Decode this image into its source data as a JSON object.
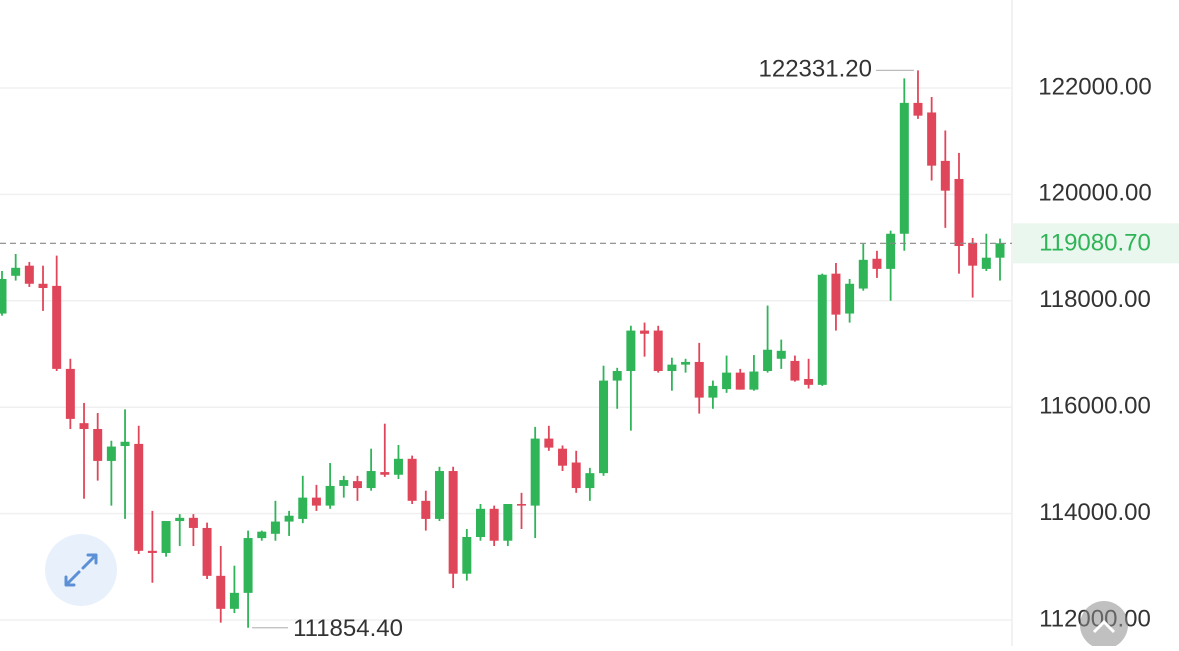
{
  "chart_data": {
    "type": "candlestick",
    "up_color": "#2fb457",
    "down_color": "#e0465a",
    "ylim": [
      111511,
      123654
    ],
    "yticks": [
      {
        "value": 112000,
        "label": "112000.00"
      },
      {
        "value": 114000,
        "label": "114000.00"
      },
      {
        "value": 116000,
        "label": "116000.00"
      },
      {
        "value": 118000,
        "label": "118000.00"
      },
      {
        "value": 120000,
        "label": "120000.00"
      },
      {
        "value": 122000,
        "label": "122000.00"
      }
    ],
    "grid": true,
    "open": [
      117760,
      118470,
      118660,
      118320,
      118280,
      116720,
      115700,
      115590,
      114990,
      115270,
      115310,
      113300,
      113260,
      113860,
      113920,
      113730,
      112830,
      112210,
      112510,
      113540,
      113620,
      113850,
      113900,
      114300,
      114150,
      114520,
      114610,
      114480,
      114780,
      114730,
      115030,
      114240,
      113900,
      114800,
      112870,
      113560,
      114090,
      113490,
      114180,
      114150,
      115410,
      115220,
      114960,
      114480,
      114760,
      116500,
      116680,
      117440,
      117440,
      116680,
      116800,
      116850,
      116180,
      116340,
      116650,
      116330,
      116680,
      116910,
      116870,
      116530,
      116420,
      118510,
      117760,
      118230,
      118790,
      118600,
      119260,
      121720,
      121540,
      120630,
      120290,
      119090,
      118600,
      118810
    ],
    "high": [
      118560,
      118880,
      118730,
      118660,
      118850,
      116910,
      116080,
      115890,
      115370,
      115960,
      115650,
      114050,
      113860,
      113990,
      113990,
      113830,
      113390,
      113020,
      113680,
      113680,
      114240,
      114050,
      114710,
      114540,
      114950,
      114710,
      114710,
      115220,
      115690,
      115290,
      115090,
      114430,
      114880,
      114880,
      113710,
      114180,
      114150,
      114180,
      114390,
      115630,
      115650,
      115280,
      115180,
      114860,
      116780,
      116740,
      117530,
      117590,
      117530,
      116930,
      116910,
      117210,
      116500,
      116970,
      116720,
      116980,
      117910,
      117270,
      116970,
      116910,
      118510,
      118710,
      118410,
      119070,
      118940,
      119320,
      122180,
      122331.2,
      121830,
      121200,
      120780,
      119180,
      119260,
      119170
    ],
    "low": [
      117720,
      118380,
      118260,
      117810,
      116680,
      115590,
      114280,
      114620,
      114150,
      113900,
      113240,
      112700,
      113190,
      113390,
      113390,
      112770,
      111950,
      112130,
      111854.4,
      113490,
      113490,
      113580,
      113820,
      114050,
      114090,
      114300,
      114240,
      114430,
      114690,
      114650,
      114180,
      113680,
      113860,
      112600,
      112740,
      113490,
      113390,
      113390,
      113710,
      113540,
      115180,
      114800,
      114390,
      114240,
      114710,
      115970,
      115560,
      116950,
      116650,
      116310,
      116650,
      115880,
      115970,
      116270,
      116330,
      116310,
      116650,
      116720,
      116480,
      116350,
      116400,
      117440,
      117590,
      118190,
      118430,
      118000,
      118940,
      121420,
      120260,
      119370,
      118510,
      118060,
      118560,
      118380
    ],
    "close": [
      118410,
      118620,
      118320,
      118240,
      116720,
      115780,
      115590,
      114990,
      115260,
      115350,
      113300,
      113260,
      113860,
      113920,
      113730,
      112830,
      112210,
      112510,
      113540,
      113660,
      113850,
      113960,
      114300,
      114150,
      114520,
      114630,
      114480,
      114800,
      114730,
      115030,
      114240,
      113900,
      114800,
      112870,
      113560,
      114090,
      113490,
      114180,
      114150,
      115410,
      115240,
      114900,
      114480,
      114760,
      116500,
      116680,
      117440,
      117380,
      116680,
      116800,
      116850,
      116180,
      116400,
      116650,
      116330,
      116670,
      117080,
      117060,
      116500,
      116420,
      118490,
      117740,
      118320,
      118770,
      118600,
      119260,
      121720,
      121480,
      120540,
      120070,
      119030,
      118660,
      118810,
      119080.7
    ],
    "max_label": {
      "value": 122331.2,
      "label": "122331.20"
    },
    "min_label": {
      "value": 111854.4,
      "label": "111854.40"
    },
    "last_price": {
      "value": 119080.7,
      "label": "119080.70"
    }
  }
}
